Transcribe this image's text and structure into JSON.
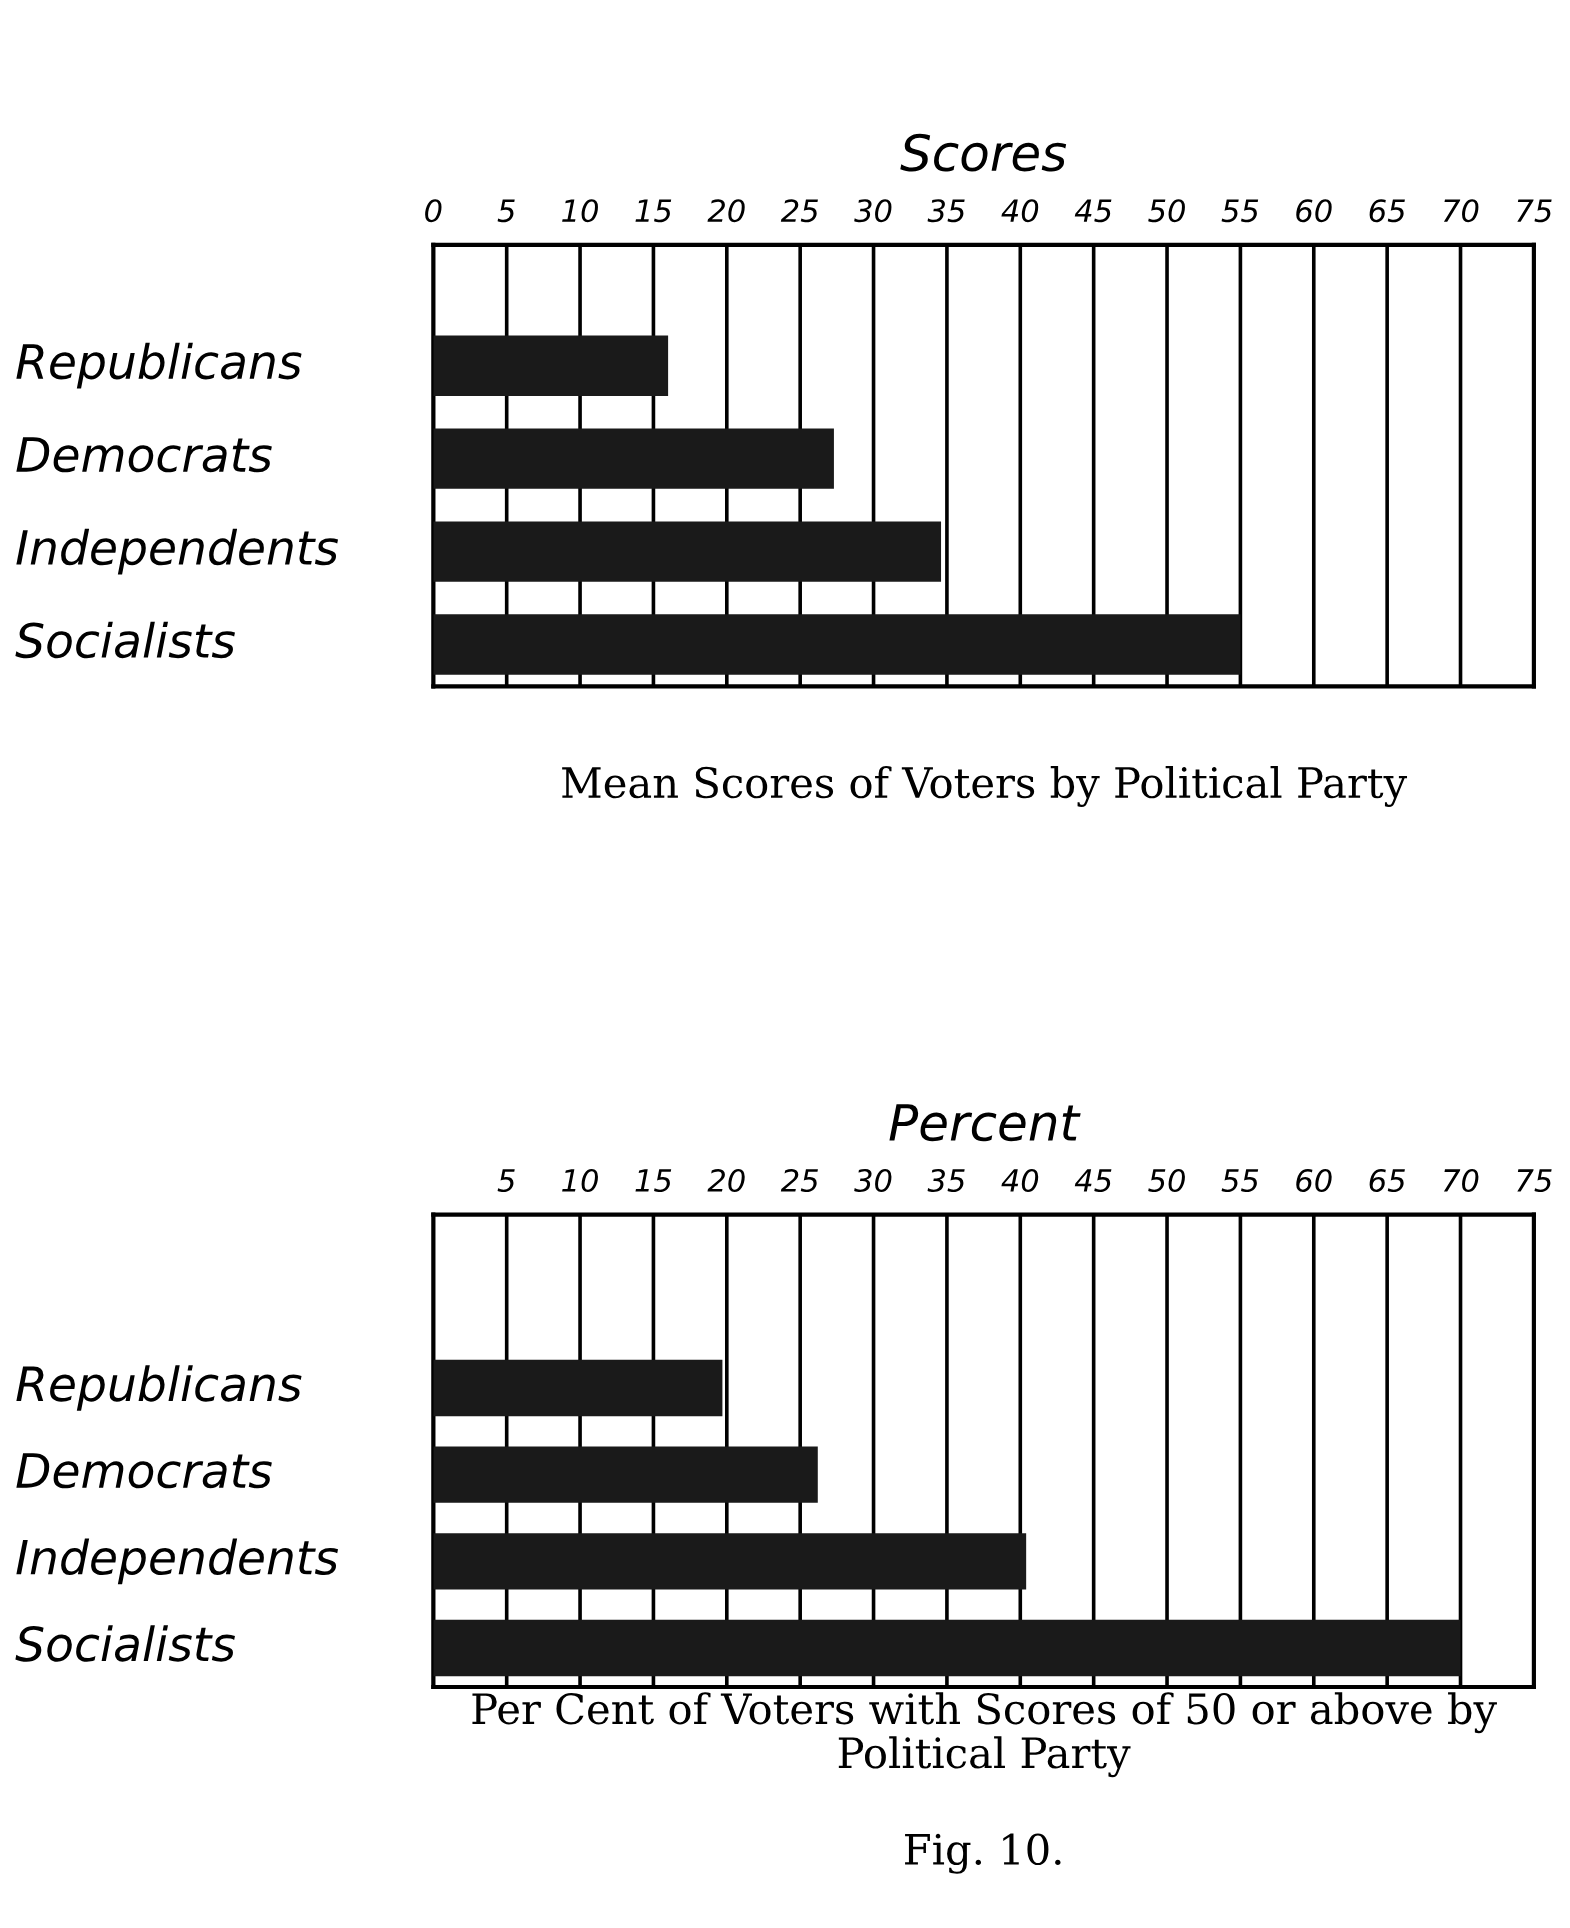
{
  "chart_data": [
    {
      "type": "bar",
      "orientation": "horizontal",
      "title": "Mean Scores of Voters by Political Party",
      "xlabel": "Scores",
      "categories": [
        "Republicans",
        "Democrats",
        "Independents",
        "Socialists"
      ],
      "values": [
        16,
        27.3,
        34.6,
        55
      ],
      "color": "#1a1a1a",
      "xlim": [
        0,
        75
      ],
      "xticks": [
        0,
        5,
        10,
        15,
        20,
        25,
        30,
        35,
        40,
        45,
        50,
        55,
        60,
        65,
        70,
        75
      ],
      "grid": "x"
    },
    {
      "type": "bar",
      "orientation": "horizontal",
      "title": "Per Cent of Voters with Scores of 50 or above by Political Party",
      "xlabel": "Percent",
      "categories": [
        "Republicans",
        "Democrats",
        "Independents",
        "Socialists"
      ],
      "values": [
        19.7,
        26.2,
        40.4,
        70
      ],
      "color": "#1a1a1a",
      "xlim": [
        0,
        75
      ],
      "xticks": [
        {
          "value": 0,
          "label": null
        },
        5,
        10,
        15,
        20,
        25,
        30,
        35,
        40,
        45,
        50,
        55,
        60,
        65,
        70,
        75
      ],
      "grid": "x",
      "annotations": [
        "Fig. 10."
      ]
    }
  ]
}
